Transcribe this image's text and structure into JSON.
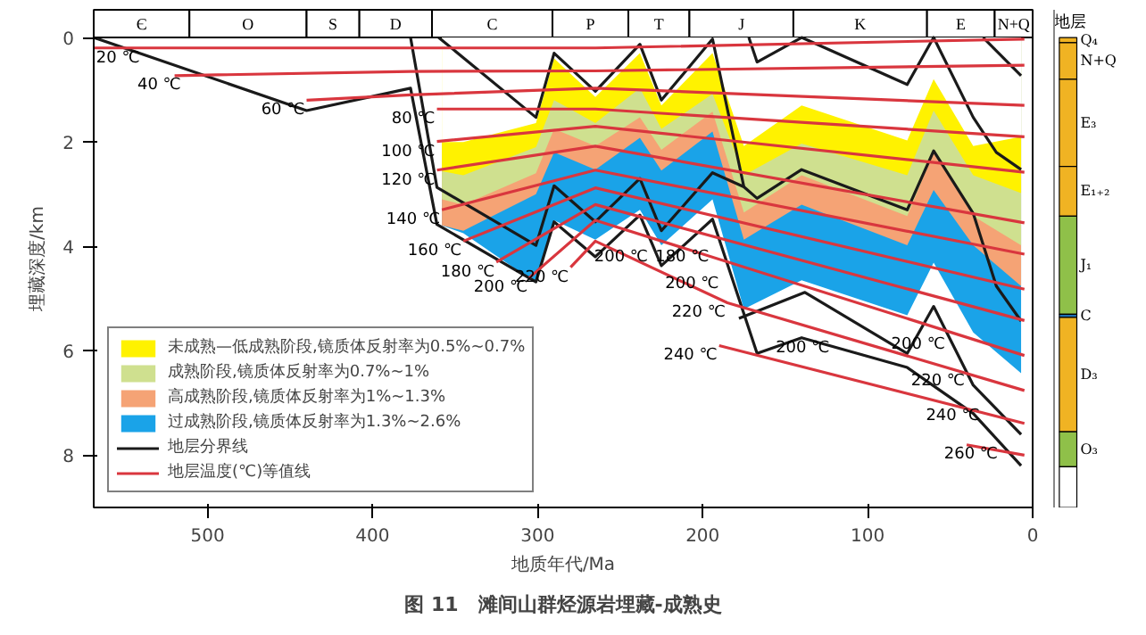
{
  "chart_data": [
    {
      "type": "line",
      "title": "图 11　滩间山群烃源岩埋藏-成熟史",
      "xlabel": "地质年代/Ma",
      "ylabel": "埋藏深度/km",
      "xlim": [
        569,
        0
      ],
      "ylim": [
        9,
        -0.53
      ],
      "xticks": [
        500,
        400,
        300,
        200,
        100,
        0
      ],
      "yticks": [
        0,
        2,
        4,
        6,
        8
      ],
      "grid": false,
      "legend": "bottom left",
      "bands": [
        {
          "axis": "x",
          "from": 569,
          "to": 511,
          "label": "Є"
        },
        {
          "axis": "x",
          "from": 511,
          "to": 440,
          "label": "O"
        },
        {
          "axis": "x",
          "from": 440,
          "to": 408,
          "label": "S"
        },
        {
          "axis": "x",
          "from": 408,
          "to": 364,
          "label": "D"
        },
        {
          "axis": "x",
          "from": 364,
          "to": 291,
          "label": "C"
        },
        {
          "axis": "x",
          "from": 291,
          "to": 245,
          "label": "P"
        },
        {
          "axis": "x",
          "from": 245,
          "to": 208,
          "label": "T"
        },
        {
          "axis": "x",
          "from": 208,
          "to": 145,
          "label": "J"
        },
        {
          "axis": "x",
          "from": 145,
          "to": 64,
          "label": "K"
        },
        {
          "axis": "x",
          "from": 64,
          "to": 23,
          "label": "E"
        },
        {
          "axis": "x",
          "from": 23,
          "to": 0,
          "label": "N+Q"
        }
      ],
      "series": [
        {
          "type": "area",
          "color": "#ffffff",
          "x": [
            358,
            345,
            301,
            290,
            265,
            238,
            225,
            194,
            175,
            140,
            76,
            60,
            36,
            7
          ],
          "values": [
            2.0,
            2.0,
            1.64,
            0.4,
            1.14,
            0.3,
            1.3,
            0.3,
            2.08,
            1.3,
            1.97,
            0.8,
            2.08,
            1.9
          ]
        },
        {
          "name": "未成熟—低成熟阶段,镜质体反射率为0.5%~0.7%",
          "type": "area",
          "color": "#fff200",
          "x": [
            358,
            345,
            301,
            290,
            265,
            238,
            225,
            194,
            175,
            140,
            76,
            60,
            36,
            7
          ],
          "values": [
            2.56,
            2.64,
            2.1,
            1.2,
            1.64,
            0.97,
            1.75,
            1.08,
            2.64,
            2.03,
            2.64,
            1.4,
            2.64,
            2.98
          ]
        },
        {
          "name": "成熟阶段,镜质体反射率为0.7%~1%",
          "type": "area",
          "color": "#cfe08f",
          "x": [
            358,
            345,
            301,
            290,
            265,
            238,
            225,
            194,
            175,
            140,
            76,
            60,
            36,
            7
          ],
          "values": [
            3.1,
            3.2,
            2.6,
            1.75,
            2.08,
            1.53,
            2.15,
            1.42,
            3.35,
            2.64,
            3.42,
            2.2,
            3.42,
            3.98
          ]
        },
        {
          "name": "高成熟阶段,镜质体反射率为1%~1.3%",
          "type": "area",
          "color": "#f5a375",
          "x": [
            358,
            345,
            301,
            290,
            265,
            238,
            225,
            194,
            175,
            140,
            76,
            60,
            36,
            7
          ],
          "values": [
            3.6,
            3.7,
            3.0,
            2.2,
            2.53,
            1.92,
            2.55,
            1.8,
            3.87,
            3.2,
            3.98,
            2.92,
            3.98,
            4.76
          ]
        },
        {
          "name": "过成熟阶段,镜质体反射率为1.3%~2.6%",
          "type": "area",
          "color": "#1aa3e8",
          "x": [
            358,
            345,
            301,
            290,
            265,
            238,
            225,
            194,
            175,
            140,
            76,
            60,
            36,
            7
          ],
          "values": [
            3.6,
            3.75,
            4.7,
            3.5,
            3.87,
            3.3,
            3.98,
            3.1,
            5.2,
            4.65,
            5.32,
            4.31,
            5.65,
            6.43
          ]
        },
        {
          "name": "地层分界线",
          "type": "line",
          "color": "#1a1a1a",
          "x": [
            569,
            440,
            377,
            361,
            301,
            290,
            265,
            238,
            225,
            194,
            167,
            140,
            76,
            36,
            7
          ],
          "values": [
            0,
            1.4,
            0.97,
            3.58,
            4.68,
            3.53,
            4.2,
            3.4,
            4.37,
            3.48,
            6.05,
            5.75,
            6.32,
            7.2,
            8.2
          ]
        },
        {
          "type": "line",
          "color": "#1a1a1a",
          "x": [
            377,
            361,
            301,
            290,
            265,
            238,
            225,
            194,
            175,
            167,
            140,
            76,
            60,
            36,
            22,
            7
          ],
          "values": [
            0,
            2.87,
            3.98,
            2.84,
            3.53,
            2.7,
            3.7,
            2.59,
            2.86,
            3.08,
            2.53,
            3.3,
            2.17,
            3.37,
            4.76,
            5.43
          ]
        },
        {
          "type": "line",
          "color": "#1a1a1a",
          "x": [
            360,
            301,
            290,
            265,
            238,
            225,
            194,
            175
          ],
          "values": [
            0,
            1.53,
            0.3,
            1.03,
            0.13,
            1.2,
            0.03,
            2.86
          ]
        },
        {
          "type": "line",
          "color": "#1a1a1a",
          "x": [
            172,
            167,
            140,
            76,
            60,
            36,
            22,
            7
          ],
          "values": [
            0,
            0.47,
            0,
            0.9,
            0,
            1.53,
            2.2,
            2.53
          ]
        },
        {
          "type": "line",
          "color": "#1a1a1a",
          "x": [
            178,
            138,
            76,
            60,
            36,
            7
          ],
          "values": [
            5.38,
            4.88,
            6.05,
            5.15,
            6.66,
            7.6
          ]
        },
        {
          "type": "line",
          "color": "#1a1a1a",
          "x": [
            30,
            7
          ],
          "values": [
            0,
            0.73
          ]
        },
        {
          "name": "地层温度(℃)等值线",
          "type": "line",
          "color": "#d9363e",
          "x": [
            569,
            377,
            265,
            5
          ],
          "values": [
            0.2,
            0.2,
            0.2,
            0.03
          ]
        },
        {
          "type": "line",
          "color": "#d9363e",
          "x": [
            520,
            377,
            265,
            5
          ],
          "values": [
            0.73,
            0.65,
            0.64,
            0.53
          ]
        },
        {
          "type": "line",
          "color": "#d9363e",
          "x": [
            440,
            377,
            265,
            5
          ],
          "values": [
            1.2,
            1.1,
            0.97,
            1.3
          ]
        },
        {
          "type": "line",
          "color": "#d9363e",
          "x": [
            361,
            265,
            5
          ],
          "values": [
            1.37,
            1.37,
            1.9
          ]
        },
        {
          "type": "line",
          "color": "#d9363e",
          "x": [
            361,
            265,
            5
          ],
          "values": [
            1.99,
            1.7,
            2.58
          ]
        },
        {
          "type": "line",
          "color": "#d9363e",
          "x": [
            361,
            265,
            5
          ],
          "values": [
            2.54,
            2.08,
            3.55
          ]
        },
        {
          "type": "line",
          "color": "#d9363e",
          "x": [
            358,
            265,
            5
          ],
          "values": [
            3.3,
            2.54,
            4.15
          ]
        },
        {
          "type": "line",
          "color": "#d9363e",
          "x": [
            345,
            265,
            5
          ],
          "values": [
            3.9,
            2.88,
            4.82
          ]
        },
        {
          "type": "line",
          "color": "#d9363e",
          "x": [
            325,
            265,
            5
          ],
          "values": [
            4.3,
            3.2,
            5.42
          ]
        },
        {
          "type": "line",
          "color": "#d9363e",
          "x": [
            305,
            265,
            5
          ],
          "values": [
            4.6,
            3.5,
            6.09
          ]
        },
        {
          "type": "line",
          "color": "#d9363e",
          "x": [
            280,
            265,
            185,
            5
          ],
          "values": [
            4.4,
            3.9,
            5.08,
            6.76
          ]
        },
        {
          "type": "line",
          "color": "#d9363e",
          "x": [
            190,
            5
          ],
          "values": [
            5.9,
            7.39
          ]
        },
        {
          "type": "line",
          "color": "#d9363e",
          "x": [
            40,
            5
          ],
          "values": [
            7.8,
            8.0
          ]
        }
      ],
      "annotations": [
        {
          "text": "20 ℃",
          "x": 540,
          "y": 0.2
        },
        {
          "text": "40 ℃",
          "x": 515,
          "y": 0.72
        },
        {
          "text": "60 ℃",
          "x": 440,
          "y": 1.2
        },
        {
          "text": "80 ℃",
          "x": 361,
          "y": 1.37
        },
        {
          "text": "100 ℃",
          "x": 361,
          "y": 1.99
        },
        {
          "text": "120 ℃",
          "x": 361,
          "y": 2.54
        },
        {
          "text": "140 ℃",
          "x": 358,
          "y": 3.3
        },
        {
          "text": "160 ℃",
          "x": 345,
          "y": 3.9
        },
        {
          "text": "180 ℃",
          "x": 325,
          "y": 4.3
        },
        {
          "text": "200 ℃",
          "x": 305,
          "y": 4.6
        },
        {
          "text": "220 ℃",
          "x": 280,
          "y": 4.4
        },
        {
          "text": "200 ℃",
          "x": 232,
          "y": 4.01
        },
        {
          "text": "180 ℃",
          "x": 195,
          "y": 4.01
        },
        {
          "text": "200 ℃",
          "x": 189,
          "y": 4.52
        },
        {
          "text": "220 ℃",
          "x": 185,
          "y": 5.08
        },
        {
          "text": "240 ℃",
          "x": 190,
          "y": 5.9
        },
        {
          "text": "200 ℃",
          "x": 122,
          "y": 5.75
        },
        {
          "text": "200 ℃",
          "x": 52,
          "y": 5.69
        },
        {
          "text": "220 ℃",
          "x": 40,
          "y": 6.39
        },
        {
          "text": "240 ℃",
          "x": 31,
          "y": 7.06
        },
        {
          "text": "260 ℃",
          "x": 20,
          "y": 7.79
        }
      ]
    },
    {
      "type": "bar",
      "stacked": true,
      "title": "地层",
      "categories": [
        null
      ],
      "ylim": [
        9,
        -0.53
      ],
      "series": [
        {
          "name": "Q₄",
          "color": "#f0b323",
          "values": [
            0.1
          ]
        },
        {
          "name": "N+Q",
          "color": "#f0b323",
          "values": [
            0.7
          ]
        },
        {
          "name": "E₃",
          "color": "#f0b323",
          "values": [
            1.67
          ]
        },
        {
          "name": "E₁₊₂",
          "color": "#f0b323",
          "values": [
            0.95
          ]
        },
        {
          "name": "J₁",
          "color": "#8fc049",
          "values": [
            1.88
          ]
        },
        {
          "name": "C",
          "color": "#1e6fb5",
          "values": [
            0.06
          ]
        },
        {
          "name": "D₃",
          "color": "#f0b323",
          "values": [
            2.19
          ]
        },
        {
          "name": "O₃",
          "color": "#8fc049",
          "values": [
            0.67
          ]
        },
        {
          "color": "#ffffff",
          "values": [
            0.78
          ]
        }
      ]
    }
  ]
}
